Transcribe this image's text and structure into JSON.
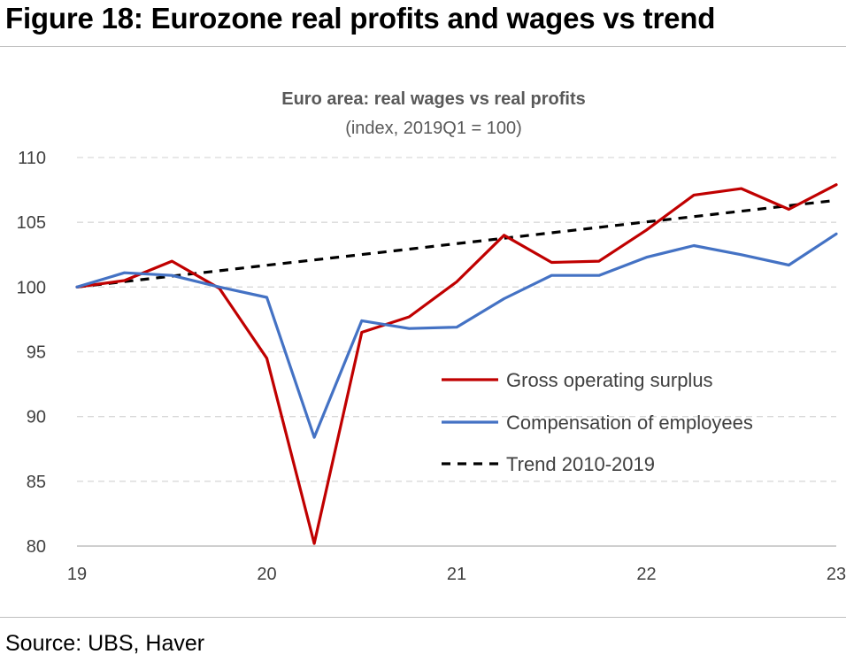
{
  "figure": {
    "title": "Figure 18: Eurozone real profits and wages vs trend",
    "source": "Source: UBS, Haver"
  },
  "chart_data": {
    "type": "line",
    "title": "Euro area: real wages vs real profits",
    "subtitle": "(index, 2019Q1 = 100)",
    "xlabel": "",
    "ylabel": "",
    "x": [
      2019.0,
      2019.25,
      2019.5,
      2019.75,
      2020.0,
      2020.25,
      2020.5,
      2020.75,
      2021.0,
      2021.25,
      2021.5,
      2021.75,
      2022.0,
      2022.25,
      2022.5,
      2022.75,
      2023.0
    ],
    "xlim": [
      2019,
      2023
    ],
    "ylim": [
      80,
      110
    ],
    "xticks": [
      19,
      20,
      21,
      22,
      23
    ],
    "yticks": [
      80,
      85,
      90,
      95,
      100,
      105,
      110
    ],
    "grid": "horizontal dashed",
    "legend_position": "lower-right inside plot",
    "series": [
      {
        "name": "Gross operating surplus",
        "color": "#c00000",
        "style": "solid",
        "values": [
          100.0,
          100.5,
          102.0,
          99.9,
          94.5,
          80.2,
          96.5,
          97.7,
          100.4,
          104.0,
          101.9,
          102.0,
          104.4,
          107.1,
          107.6,
          106.0,
          107.9
        ]
      },
      {
        "name": "Compensation of employees",
        "color": "#4472c4",
        "style": "solid",
        "values": [
          100.0,
          101.1,
          100.9,
          100.0,
          99.2,
          88.4,
          97.4,
          96.8,
          96.9,
          99.1,
          100.9,
          100.9,
          102.3,
          103.2,
          102.5,
          101.7,
          104.1
        ]
      },
      {
        "name": "Trend 2010-2019",
        "color": "#000000",
        "style": "dashed",
        "values": [
          100.0,
          100.42,
          100.84,
          101.26,
          101.68,
          102.09,
          102.51,
          102.93,
          103.35,
          103.77,
          104.19,
          104.61,
          105.03,
          105.44,
          105.86,
          106.28,
          106.7
        ]
      }
    ]
  }
}
